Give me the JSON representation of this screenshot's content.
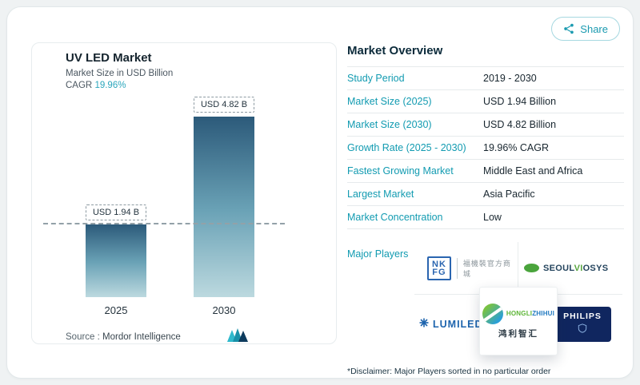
{
  "page": {
    "share_label": "Share"
  },
  "chart_card": {
    "title": "UV LED Market",
    "subtitle": "Market Size in USD Billion",
    "cagr_label": "CAGR",
    "cagr_value": "19.96%",
    "source_label": "Source :",
    "source_name": "Mordor Intelligence"
  },
  "chart_data": {
    "type": "bar",
    "title": "UV LED Market",
    "ylabel": "Market Size in USD Billion",
    "categories": [
      "2025",
      "2030"
    ],
    "values": [
      1.94,
      4.82
    ],
    "bar_labels": [
      "USD 1.94 B",
      "USD 4.82 B"
    ],
    "unit": "USD Billion",
    "ylim": [
      0,
      4.82
    ],
    "reference_line": {
      "value": 1.94,
      "style": "dashed"
    },
    "grid": false,
    "cagr": "19.96%",
    "bar_gradient": [
      "#2c5a7a",
      "#bcd9df"
    ]
  },
  "market_overview": {
    "title": "Market Overview",
    "rows": [
      {
        "label": "Study Period",
        "value": "2019 - 2030"
      },
      {
        "label": "Market Size (2025)",
        "value": "USD 1.94 Billion"
      },
      {
        "label": "Market Size (2030)",
        "value": "USD 4.82 Billion"
      },
      {
        "label": "Growth Rate (2025 - 2030)",
        "value": "19.96% CAGR"
      },
      {
        "label": "Fastest Growing Market",
        "value": "Middle East and Africa"
      },
      {
        "label": "Largest Market",
        "value": "Asia Pacific"
      },
      {
        "label": "Market Concentration",
        "value": "Low"
      }
    ],
    "major_players_label": "Major Players",
    "disclaimer": "*Disclaimer: Major Players sorted in no particular order"
  },
  "players": {
    "nkfg": {
      "line1": "NK",
      "line2": "FG",
      "caption": "福機裝官方商城"
    },
    "seoulviosys": {
      "p1": "SEOUL",
      "p2": "VI",
      "p3": "OSYS"
    },
    "lumileds": {
      "name": "LUMILEDS"
    },
    "hongli": {
      "p1": "HONGLI",
      "p2": "ZHIHUI",
      "caption": "鸿利智汇"
    },
    "philips": {
      "name": "PHILIPS"
    }
  },
  "colors": {
    "teal_accent": "#129BB1",
    "navy_heading": "#0C2B3B",
    "bar_top": "#2C5A7A",
    "bar_bottom": "#BCD9DF",
    "philips_navy": "#10265F"
  }
}
